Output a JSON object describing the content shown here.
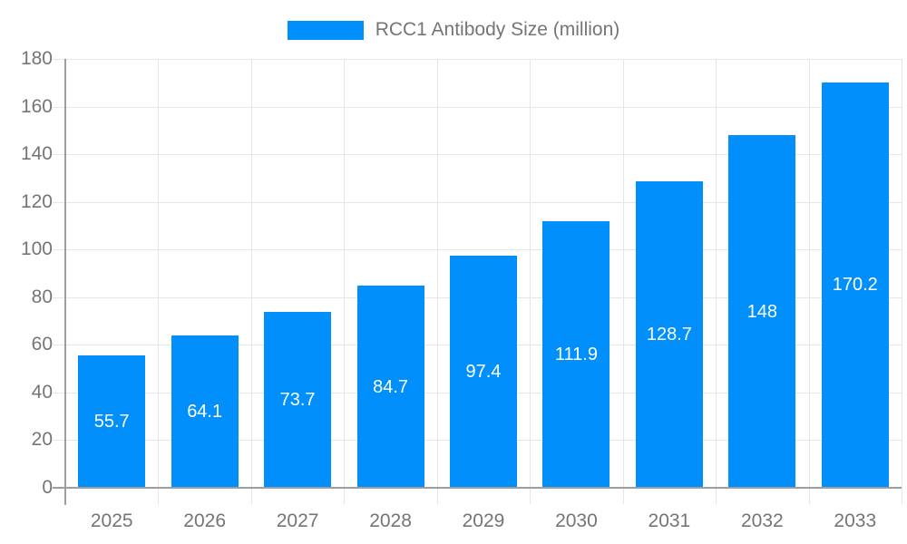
{
  "chart_data": {
    "type": "bar",
    "title": "RCC1 Antibody Size (million)",
    "categories": [
      "2025",
      "2026",
      "2027",
      "2028",
      "2029",
      "2030",
      "2031",
      "2032",
      "2033"
    ],
    "values": [
      55.7,
      64.1,
      73.7,
      84.7,
      97.4,
      111.9,
      128.7,
      148,
      170.2
    ],
    "value_labels": [
      "55.7",
      "64.1",
      "73.7",
      "84.7",
      "97.4",
      "111.9",
      "128.7",
      "148",
      "170.2"
    ],
    "ylim": [
      0,
      180
    ],
    "ytick_step": 20,
    "ytick_labels": [
      "0",
      "20",
      "40",
      "60",
      "80",
      "100",
      "120",
      "140",
      "160",
      "180"
    ],
    "grid": "horizontal-and-vertical",
    "legend_position": "top-center",
    "value_label_position": "centered-inside-bar",
    "colors": {
      "bar": "#008FFB",
      "axis_text": "#757575",
      "value_text": "#ffffff",
      "grid": "#e6e6e6",
      "axis_line": "#9e9e9e"
    }
  }
}
